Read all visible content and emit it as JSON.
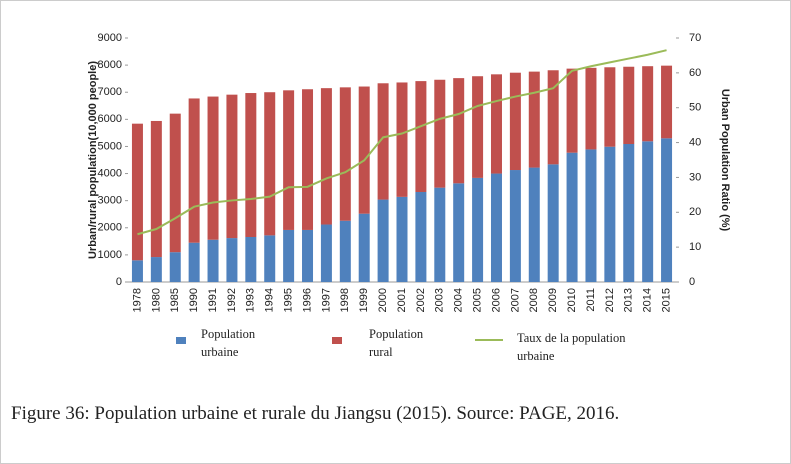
{
  "chart_data": {
    "type": "stacked_bar_line",
    "caption": "Figure 36: Population urbaine et rurale du Jiangsu (2015). Source: PAGE, 2016.",
    "y_label": "Urban/rural population(10,000 people)",
    "y2_label": "Urban Population Ratio (%)",
    "categories": [
      "1978",
      "1980",
      "1985",
      "1990",
      "1991",
      "1992",
      "1993",
      "1994",
      "1995",
      "1996",
      "1997",
      "1998",
      "1999",
      "2000",
      "2001",
      "2002",
      "2003",
      "2004",
      "2005",
      "2006",
      "2007",
      "2008",
      "2009",
      "2010",
      "2011",
      "2012",
      "2013",
      "2014",
      "2015"
    ],
    "series": [
      {
        "name": "Population urbaine",
        "color": "#4f81bd",
        "kind": "bar",
        "values": [
          800,
          920,
          1100,
          1450,
          1560,
          1620,
          1660,
          1720,
          1920,
          1920,
          2120,
          2260,
          2520,
          3040,
          3140,
          3320,
          3480,
          3640,
          3840,
          4000,
          4130,
          4220,
          4340,
          4770,
          4890,
          4990,
          5090,
          5190,
          5300
        ]
      },
      {
        "name": "Population rural",
        "color": "#c0504d",
        "kind": "bar",
        "values": [
          5040,
          5020,
          5110,
          5320,
          5280,
          5290,
          5310,
          5280,
          5150,
          5190,
          5030,
          4920,
          4690,
          4290,
          4220,
          4090,
          3980,
          3880,
          3750,
          3660,
          3590,
          3540,
          3470,
          3100,
          3010,
          2930,
          2850,
          2770,
          2680
        ]
      },
      {
        "name": "Taux de la population urbaine",
        "color": "#9bbb59",
        "kind": "line",
        "axis": "y2",
        "values": [
          13.7,
          15.2,
          18.3,
          21.6,
          22.8,
          23.4,
          23.8,
          24.5,
          27.2,
          27.3,
          29.7,
          31.5,
          34.9,
          41.5,
          42.6,
          44.7,
          46.8,
          48.2,
          50.5,
          51.9,
          53.2,
          54.3,
          55.6,
          60.6,
          61.9,
          63.0,
          64.1,
          65.2,
          66.5
        ]
      }
    ],
    "ylim": [
      0,
      9000
    ],
    "yticks": [
      0,
      1000,
      2000,
      3000,
      4000,
      5000,
      6000,
      7000,
      8000,
      9000
    ],
    "y2lim": [
      0,
      70
    ],
    "y2ticks": [
      0,
      10,
      20,
      30,
      40,
      50,
      60,
      70
    ]
  }
}
